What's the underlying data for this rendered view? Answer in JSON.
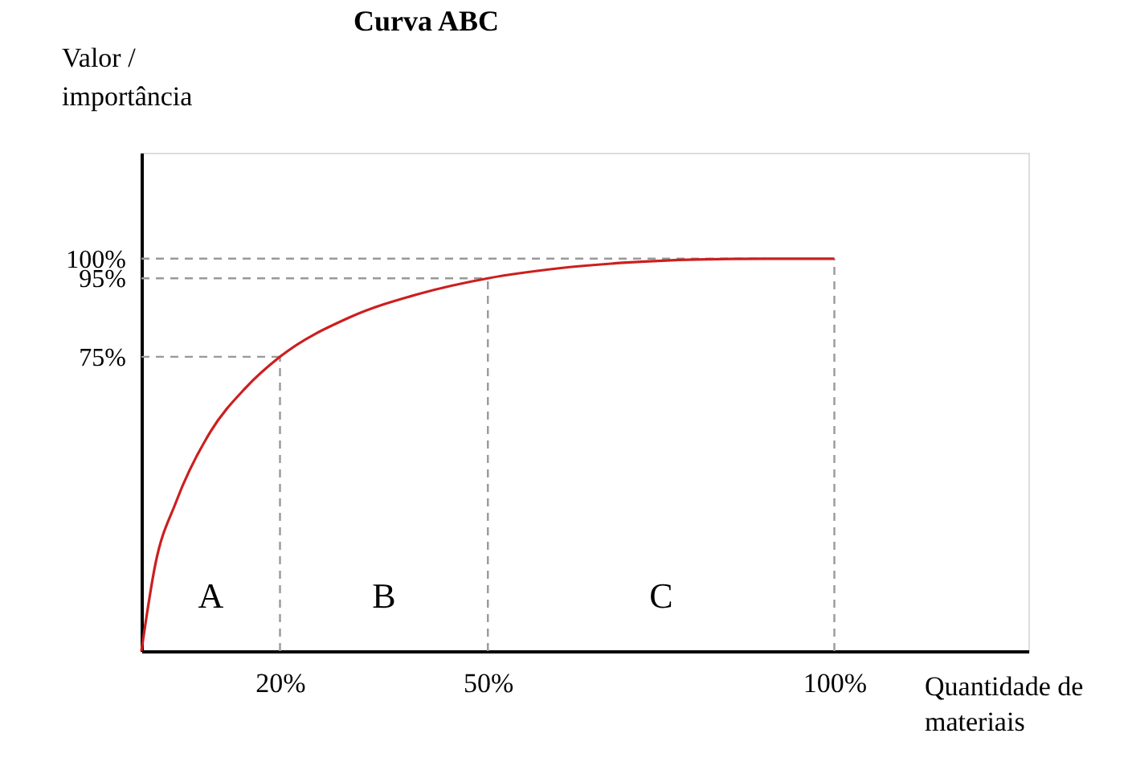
{
  "chart_data": {
    "type": "line",
    "title": "Curva ABC",
    "xlabel": "Quantidade de materiais",
    "ylabel": "Valor / importância",
    "series": [
      {
        "color": "#cc1f1f",
        "x": [
          0,
          2,
          5,
          10,
          15,
          20,
          30,
          40,
          50,
          60,
          70,
          80,
          90,
          100
        ],
        "values": [
          0,
          22,
          38,
          56,
          67,
          75,
          85,
          91,
          95,
          97.5,
          99,
          99.8,
          100,
          100
        ]
      }
    ],
    "xlim": [
      0,
      128
    ],
    "ylim": [
      0,
      127
    ],
    "xticks": [
      {
        "value": 20,
        "label": "20%"
      },
      {
        "value": 50,
        "label": "50%"
      },
      {
        "value": 100,
        "label": "100%"
      }
    ],
    "yticks": [
      {
        "value": 75,
        "label": "75%"
      },
      {
        "value": 95,
        "label": "95%"
      },
      {
        "value": 100,
        "label": "100%"
      }
    ],
    "ref_lines": [
      {
        "axis": "x",
        "value": 20,
        "color": "#999999",
        "line_style": "dashed"
      },
      {
        "axis": "x",
        "value": 50,
        "color": "#999999",
        "line_style": "dashed"
      },
      {
        "axis": "x",
        "value": 100,
        "color": "#999999",
        "line_style": "dashed"
      },
      {
        "axis": "y",
        "value": 75,
        "color": "#999999",
        "line_style": "dashed"
      },
      {
        "axis": "y",
        "value": 95,
        "color": "#999999",
        "line_style": "dashed"
      },
      {
        "axis": "y",
        "value": 100,
        "color": "#999999",
        "line_style": "dashed"
      }
    ],
    "annotations": [
      "A",
      "B",
      "C"
    ],
    "marker": "none",
    "line_style": "solid"
  }
}
